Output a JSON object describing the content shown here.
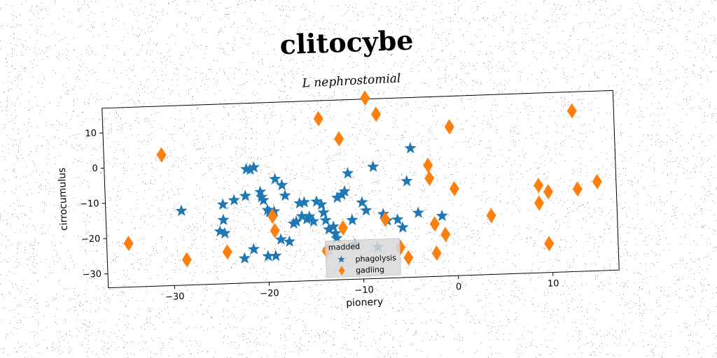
{
  "chart_data": {
    "type": "scatter",
    "title": "clitocybe",
    "subtitle": "L nephrostomial",
    "xlabel": "pionery",
    "ylabel": "cirrocumulus",
    "xlim": [
      -37,
      17
    ],
    "ylim": [
      -34,
      17
    ],
    "xticks": [
      -30,
      -20,
      -10,
      0,
      10
    ],
    "yticks": [
      -30,
      -20,
      -10,
      0,
      10
    ],
    "grid": false,
    "legend": {
      "title": "madded",
      "placement": "bottom-center"
    },
    "series": [
      {
        "name": "phagolysis",
        "marker": "star",
        "color": "#1f77b4",
        "points": [
          [
            -29,
            -12.9
          ],
          [
            -25,
            -19.1
          ],
          [
            -24.5,
            -19.7
          ],
          [
            -24.6,
            -15.9
          ],
          [
            -24.6,
            -11.5
          ],
          [
            -23.4,
            -10.4
          ],
          [
            -22.2,
            -9.3
          ],
          [
            -22,
            -1.7
          ],
          [
            -21.6,
            -1.9
          ],
          [
            -21.2,
            -1.3
          ],
          [
            -20.6,
            -8.3
          ],
          [
            -20.5,
            -9.8
          ],
          [
            -20.3,
            -10.7
          ],
          [
            -19.9,
            -13.5
          ],
          [
            -19.7,
            -14.1
          ],
          [
            -19.2,
            -14
          ],
          [
            -19,
            -4.8
          ],
          [
            -18.6,
            -22
          ],
          [
            -18.3,
            -6.6
          ],
          [
            -18,
            -9.6
          ],
          [
            -17.7,
            -22.7
          ],
          [
            -17.2,
            -17.6
          ],
          [
            -16.9,
            -17.1
          ],
          [
            -16.5,
            -11.9
          ],
          [
            -16.3,
            -15.6
          ],
          [
            -16,
            -11.7
          ],
          [
            -15.8,
            -16.5
          ],
          [
            -15.5,
            -15.8
          ],
          [
            -15.1,
            -17.2
          ],
          [
            -14.7,
            -11.6
          ],
          [
            -14.2,
            -12.5
          ],
          [
            -14,
            -14.8
          ],
          [
            -13.8,
            -17
          ],
          [
            -13.5,
            -19.6
          ],
          [
            -13,
            -18.9
          ],
          [
            -12.5,
            -10.7
          ],
          [
            -12,
            -9.9
          ],
          [
            -11.7,
            -9
          ],
          [
            -11.3,
            -3.9
          ],
          [
            -11,
            -17.2
          ],
          [
            -9.9,
            -12.3
          ],
          [
            -9.5,
            -14.6
          ],
          [
            -8.6,
            -2.3
          ],
          [
            -8.4,
            -25.1
          ],
          [
            -7.7,
            -15.8
          ],
          [
            -7.3,
            -17.7
          ],
          [
            -6.2,
            -17.5
          ],
          [
            -5.7,
            -19.8
          ],
          [
            -5.1,
            -6.7
          ],
          [
            -4.6,
            2.6
          ],
          [
            -4,
            -15.8
          ],
          [
            -22.5,
            -27
          ],
          [
            -21.5,
            -24.5
          ],
          [
            -20,
            -26.6
          ],
          [
            -19.2,
            -26.6
          ],
          [
            -12.8,
            -20.8
          ],
          [
            -13.6,
            -25.4
          ],
          [
            -12.7,
            -22.2
          ],
          [
            -1.5,
            -16.9
          ],
          [
            -10.8,
            -24.1
          ]
        ]
      },
      {
        "name": "gadling",
        "marker": "diamond",
        "color": "#ff7f0e",
        "points": [
          [
            -34.7,
            -21.6
          ],
          [
            -30.9,
            3.2
          ],
          [
            -28.6,
            -26.8
          ],
          [
            -24.3,
            -25
          ],
          [
            -19.4,
            -15.3
          ],
          [
            -19.2,
            -19.4
          ],
          [
            -14.2,
            11.9
          ],
          [
            -13.8,
            -25.7
          ],
          [
            -12.1,
            6
          ],
          [
            -12,
            -19.3
          ],
          [
            -9.2,
            17.3
          ],
          [
            -8.1,
            12.6
          ],
          [
            -7.5,
            -17.3
          ],
          [
            -6,
            -25.4
          ],
          [
            -5.2,
            -28.4
          ],
          [
            -2.8,
            -2.4
          ],
          [
            -2.7,
            -6.1
          ],
          [
            -2.3,
            -19.1
          ],
          [
            -2.2,
            -27.4
          ],
          [
            -1.2,
            -22.2
          ],
          [
            -0.4,
            8.3
          ],
          [
            -0.1,
            -9.3
          ],
          [
            3.7,
            -17.3
          ],
          [
            8.8,
            -9.2
          ],
          [
            8.8,
            -14.2
          ],
          [
            9.7,
            -25.8
          ],
          [
            9.8,
            -11.1
          ],
          [
            12.6,
            11.6
          ],
          [
            12.9,
            -10.6
          ],
          [
            15,
            -8.7
          ]
        ]
      }
    ]
  }
}
